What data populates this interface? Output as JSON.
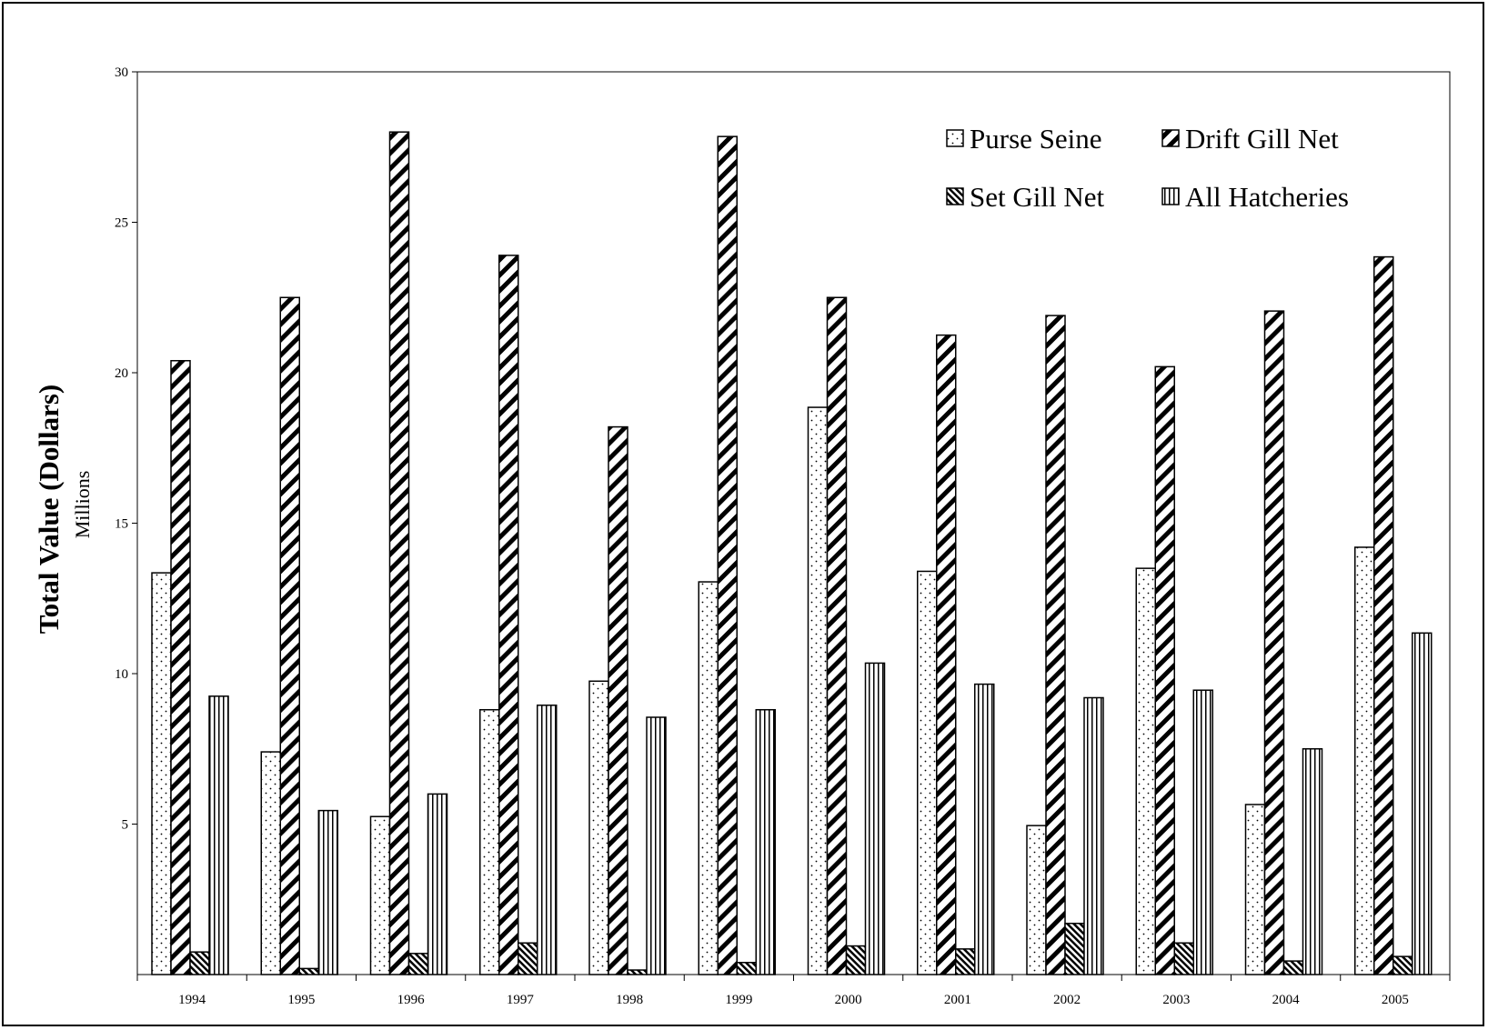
{
  "chart_data": {
    "type": "bar",
    "title": "",
    "ylabel_main": "Total Value (Dollars)",
    "ylabel_unit": "Millions",
    "xlabel": "",
    "ylim": [
      0,
      30
    ],
    "yticks": [
      5,
      10,
      15,
      20,
      25,
      30
    ],
    "grid": false,
    "legend_position": "top-right",
    "categories": [
      "1994",
      "1995",
      "1996",
      "1997",
      "1998",
      "1999",
      "2000",
      "2001",
      "2002",
      "2003",
      "2004",
      "2005"
    ],
    "series": [
      {
        "name": "Purse Seine",
        "pattern": "dots",
        "values": [
          13.35,
          7.4,
          5.25,
          8.8,
          9.75,
          13.05,
          18.85,
          13.4,
          4.95,
          13.5,
          5.65,
          14.2
        ]
      },
      {
        "name": "Drift Gill Net",
        "pattern": "diagonal-wide",
        "values": [
          20.4,
          22.5,
          28.0,
          23.9,
          18.2,
          27.85,
          22.5,
          21.25,
          21.9,
          20.2,
          22.05,
          23.85
        ]
      },
      {
        "name": "Set Gill Net",
        "pattern": "diagonal-dense",
        "values": [
          0.75,
          0.2,
          0.7,
          1.05,
          0.15,
          0.4,
          0.95,
          0.85,
          1.7,
          1.05,
          0.45,
          0.6
        ]
      },
      {
        "name": "All Hatcheries",
        "pattern": "vertical-lines",
        "values": [
          9.25,
          5.45,
          6.0,
          8.95,
          8.55,
          8.8,
          10.35,
          9.65,
          9.2,
          9.45,
          7.5,
          11.35
        ]
      }
    ]
  }
}
